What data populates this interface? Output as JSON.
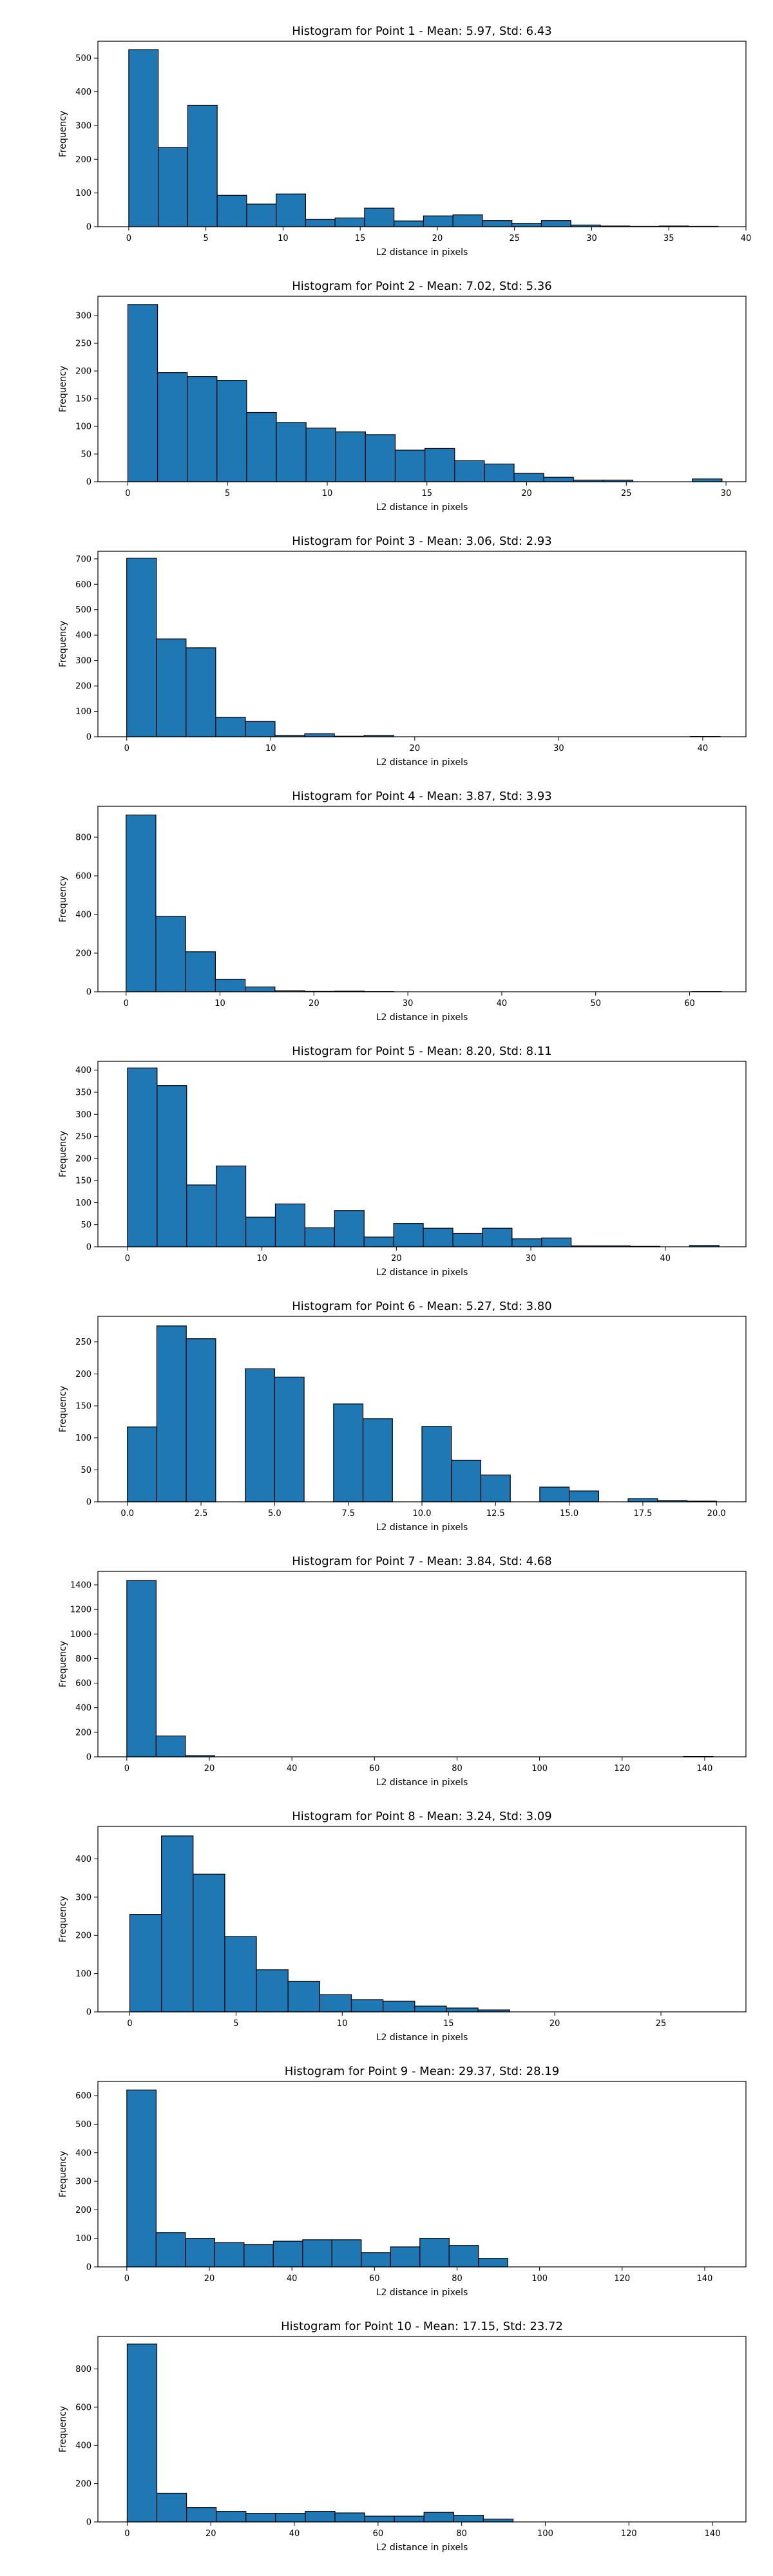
{
  "chart_data": [
    {
      "type": "bar",
      "title": "Histogram for Point 1 - Mean: 5.97, Std: 6.43",
      "xlabel": "L2 distance in pixels",
      "ylabel": "Frequency",
      "xlim": [
        -2,
        40
      ],
      "ylim": [
        0,
        550
      ],
      "xticks": [
        0,
        5,
        10,
        15,
        20,
        25,
        30,
        35,
        40
      ],
      "yticks": [
        0,
        100,
        200,
        300,
        400,
        500
      ],
      "bin_start": 0,
      "bin_width": 1.91,
      "values": [
        525,
        235,
        360,
        93,
        67,
        97,
        22,
        26,
        55,
        17,
        32,
        35,
        18,
        10,
        18,
        5,
        2,
        1,
        2,
        1
      ]
    },
    {
      "type": "bar",
      "title": "Histogram for Point 2 - Mean: 7.02, Std: 5.36",
      "xlabel": "L2 distance in pixels",
      "ylabel": "Frequency",
      "xlim": [
        -1.5,
        31
      ],
      "ylim": [
        0,
        335
      ],
      "xticks": [
        0,
        5,
        10,
        15,
        20,
        25,
        30
      ],
      "yticks": [
        0,
        50,
        100,
        150,
        200,
        250,
        300
      ],
      "bin_start": 0,
      "bin_width": 1.49,
      "values": [
        320,
        197,
        190,
        183,
        125,
        107,
        97,
        90,
        85,
        57,
        60,
        38,
        32,
        15,
        8,
        3,
        3,
        0,
        0,
        5
      ]
    },
    {
      "type": "bar",
      "title": "Histogram for Point 3 - Mean: 3.06, Std: 2.93",
      "xlabel": "L2 distance in pixels",
      "ylabel": "Frequency",
      "xlim": [
        -2,
        43
      ],
      "ylim": [
        0,
        730
      ],
      "xticks": [
        0,
        10,
        20,
        30,
        40
      ],
      "yticks": [
        0,
        100,
        200,
        300,
        400,
        500,
        600,
        700
      ],
      "bin_start": 0,
      "bin_width": 2.06,
      "values": [
        703,
        385,
        350,
        77,
        60,
        5,
        12,
        2,
        5,
        0,
        0,
        0,
        0,
        0,
        0,
        0,
        0,
        0,
        0,
        1
      ]
    },
    {
      "type": "bar",
      "title": "Histogram for Point 4 - Mean: 3.87, Std: 3.93",
      "xlabel": "L2 distance in pixels",
      "ylabel": "Frequency",
      "xlim": [
        -3,
        66
      ],
      "ylim": [
        0,
        960
      ],
      "xticks": [
        0,
        10,
        20,
        30,
        40,
        50,
        60
      ],
      "yticks": [
        0,
        200,
        400,
        600,
        800
      ],
      "bin_start": 0,
      "bin_width": 3.17,
      "values": [
        915,
        390,
        207,
        65,
        25,
        5,
        2,
        3,
        1,
        0,
        0,
        0,
        0,
        0,
        0,
        0,
        0,
        0,
        0,
        1
      ]
    },
    {
      "type": "bar",
      "title": "Histogram for Point 5 - Mean: 8.20, Std: 8.11",
      "xlabel": "L2 distance in pixels",
      "ylabel": "Frequency",
      "xlim": [
        -2.2,
        46
      ],
      "ylim": [
        0,
        420
      ],
      "xticks": [
        0,
        10,
        20,
        30,
        40
      ],
      "yticks": [
        0,
        50,
        100,
        150,
        200,
        250,
        300,
        350,
        400
      ],
      "bin_start": 0,
      "bin_width": 2.2,
      "values": [
        405,
        365,
        140,
        183,
        67,
        97,
        43,
        82,
        22,
        53,
        42,
        30,
        42,
        18,
        20,
        2,
        2,
        1,
        0,
        3
      ]
    },
    {
      "type": "bar",
      "title": "Histogram for Point 6 - Mean: 5.27, Std: 3.80",
      "xlabel": "L2 distance in pixels",
      "ylabel": "Frequency",
      "xlim": [
        -1,
        21
      ],
      "ylim": [
        0,
        290
      ],
      "xticks": [
        0.0,
        2.5,
        5.0,
        7.5,
        10.0,
        12.5,
        15.0,
        17.5,
        20.0
      ],
      "yticks": [
        0,
        50,
        100,
        150,
        200,
        250
      ],
      "bin_start": 0,
      "bin_width": 1.0,
      "values": [
        117,
        275,
        255,
        0,
        208,
        195,
        0,
        153,
        130,
        0,
        118,
        65,
        42,
        0,
        23,
        17,
        0,
        5,
        2,
        1
      ]
    },
    {
      "type": "bar",
      "title": "Histogram for Point 7 - Mean: 3.84, Std: 4.68",
      "xlabel": "L2 distance in pixels",
      "ylabel": "Frequency",
      "xlim": [
        -7,
        150
      ],
      "ylim": [
        0,
        1510
      ],
      "xticks": [
        0,
        20,
        40,
        60,
        80,
        100,
        120,
        140
      ],
      "yticks": [
        0,
        200,
        400,
        600,
        800,
        1000,
        1200,
        1400
      ],
      "bin_start": 0,
      "bin_width": 7.1,
      "values": [
        1435,
        170,
        10,
        0,
        0,
        0,
        0,
        0,
        0,
        0,
        0,
        0,
        0,
        0,
        0,
        0,
        0,
        0,
        0,
        2
      ]
    },
    {
      "type": "bar",
      "title": "Histogram for Point 8 - Mean: 3.24, Std: 3.09",
      "xlabel": "L2 distance in pixels",
      "ylabel": "Frequency",
      "xlim": [
        -1.5,
        29
      ],
      "ylim": [
        0,
        485
      ],
      "xticks": [
        0,
        5,
        10,
        15,
        20,
        25
      ],
      "yticks": [
        0,
        100,
        200,
        300,
        400
      ],
      "bin_start": 0,
      "bin_width": 1.49,
      "values": [
        255,
        460,
        360,
        197,
        110,
        80,
        45,
        32,
        28,
        15,
        10,
        5,
        0,
        0,
        0,
        0,
        0,
        0,
        0,
        0
      ]
    },
    {
      "type": "bar",
      "title": "Histogram for Point 9 - Mean: 29.37, Std: 28.19",
      "xlabel": "L2 distance in pixels",
      "ylabel": "Frequency",
      "xlim": [
        -7,
        150
      ],
      "ylim": [
        0,
        650
      ],
      "xticks": [
        0,
        20,
        40,
        60,
        80,
        100,
        120,
        140
      ],
      "yticks": [
        0,
        100,
        200,
        300,
        400,
        500,
        600
      ],
      "bin_start": 0,
      "bin_width": 7.1,
      "values": [
        620,
        120,
        100,
        85,
        78,
        90,
        95,
        95,
        50,
        70,
        100,
        75,
        30,
        0,
        0,
        0,
        0,
        0,
        0,
        0
      ]
    },
    {
      "type": "bar",
      "title": "Histogram for Point 10 - Mean: 17.15, Std: 23.72",
      "xlabel": "L2 distance in pixels",
      "ylabel": "Frequency",
      "xlim": [
        -7,
        148
      ],
      "ylim": [
        0,
        970
      ],
      "xticks": [
        0,
        20,
        40,
        60,
        80,
        100,
        120,
        140
      ],
      "yticks": [
        0,
        200,
        400,
        600,
        800
      ],
      "bin_start": 0,
      "bin_width": 7.1,
      "values": [
        930,
        150,
        75,
        55,
        45,
        45,
        55,
        47,
        30,
        30,
        50,
        35,
        15,
        0,
        0,
        0,
        0,
        0,
        0,
        0
      ]
    }
  ],
  "colors": {
    "bar_fill": "#1f77b4",
    "bar_edge": "#000000",
    "axes": "#000000"
  }
}
